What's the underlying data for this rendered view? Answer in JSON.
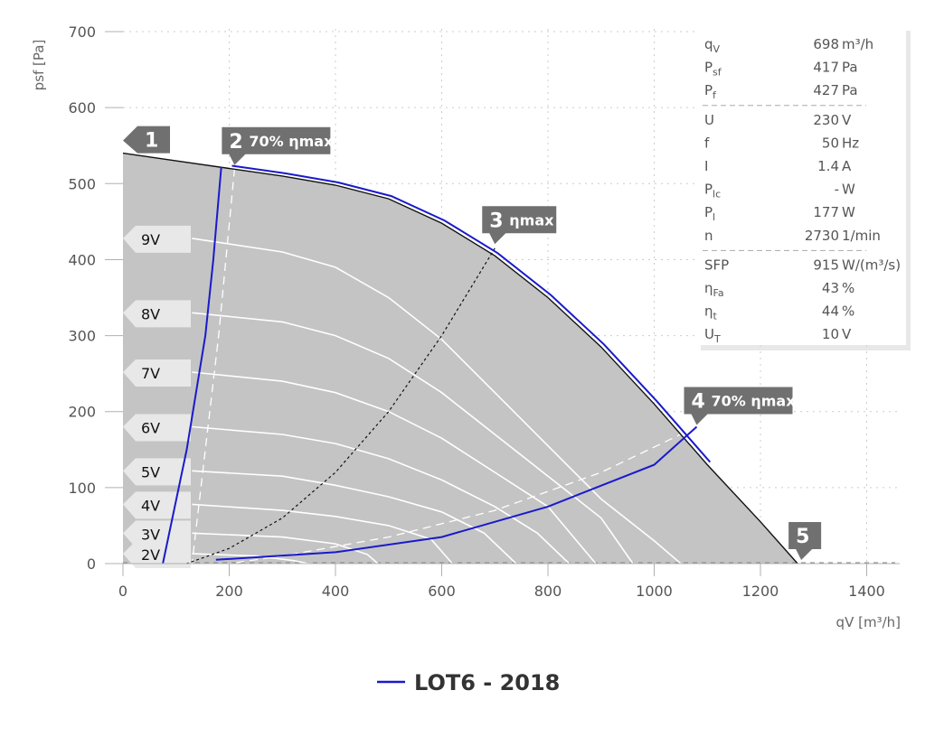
{
  "chart_data": {
    "type": "line",
    "xlabel": "qV [m³/h]",
    "ylabel": "psf [Pa]",
    "xlim": [
      0,
      1460
    ],
    "ylim": [
      0,
      700
    ],
    "xticks": [
      0,
      200,
      400,
      600,
      800,
      1000,
      1200,
      1400
    ],
    "yticks": [
      0,
      100,
      200,
      300,
      400,
      500,
      600,
      700
    ],
    "grid": "dotted",
    "legend_position": "bottom-center",
    "envelope": [
      [
        0,
        540
      ],
      [
        100,
        530
      ],
      [
        200,
        520
      ],
      [
        300,
        510
      ],
      [
        400,
        498
      ],
      [
        500,
        480
      ],
      [
        600,
        448
      ],
      [
        700,
        405
      ],
      [
        800,
        350
      ],
      [
        900,
        285
      ],
      [
        1000,
        210
      ],
      [
        1100,
        130
      ],
      [
        1200,
        55
      ],
      [
        1270,
        0
      ]
    ],
    "voltage_curves": [
      {
        "label": "9V",
        "points": [
          [
            130,
            428
          ],
          [
            300,
            410
          ],
          [
            400,
            390
          ],
          [
            500,
            350
          ],
          [
            600,
            295
          ],
          [
            700,
            225
          ],
          [
            800,
            155
          ],
          [
            900,
            85
          ],
          [
            1000,
            30
          ],
          [
            1050,
            0
          ]
        ]
      },
      {
        "label": "8V",
        "points": [
          [
            130,
            330
          ],
          [
            300,
            318
          ],
          [
            400,
            300
          ],
          [
            500,
            270
          ],
          [
            600,
            225
          ],
          [
            700,
            170
          ],
          [
            800,
            115
          ],
          [
            900,
            60
          ],
          [
            960,
            0
          ]
        ]
      },
      {
        "label": "7V",
        "points": [
          [
            130,
            252
          ],
          [
            300,
            240
          ],
          [
            400,
            225
          ],
          [
            500,
            200
          ],
          [
            600,
            165
          ],
          [
            700,
            120
          ],
          [
            800,
            75
          ],
          [
            890,
            0
          ]
        ]
      },
      {
        "label": "6V",
        "points": [
          [
            130,
            180
          ],
          [
            300,
            170
          ],
          [
            400,
            158
          ],
          [
            500,
            138
          ],
          [
            600,
            110
          ],
          [
            700,
            75
          ],
          [
            780,
            40
          ],
          [
            840,
            0
          ]
        ]
      },
      {
        "label": "5V",
        "points": [
          [
            130,
            122
          ],
          [
            300,
            115
          ],
          [
            400,
            103
          ],
          [
            500,
            88
          ],
          [
            600,
            68
          ],
          [
            680,
            40
          ],
          [
            740,
            0
          ]
        ]
      },
      {
        "label": "4V",
        "points": [
          [
            130,
            78
          ],
          [
            300,
            70
          ],
          [
            400,
            62
          ],
          [
            500,
            50
          ],
          [
            580,
            32
          ],
          [
            620,
            0
          ]
        ]
      },
      {
        "label": "3V",
        "points": [
          [
            130,
            40
          ],
          [
            300,
            35
          ],
          [
            400,
            26
          ],
          [
            460,
            12
          ],
          [
            480,
            0
          ]
        ]
      },
      {
        "label": "2V",
        "points": [
          [
            130,
            13
          ],
          [
            250,
            10
          ],
          [
            320,
            4
          ],
          [
            350,
            0
          ]
        ]
      }
    ],
    "series": [
      {
        "name": "LOT6 - 2018",
        "color": "#1a1acc",
        "points": [
          [
            185,
            522
          ],
          [
            170,
            400
          ],
          [
            155,
            300
          ],
          [
            120,
            150
          ],
          [
            75,
            0
          ]
        ],
        "points2": [
          [
            175,
            5
          ],
          [
            400,
            15
          ],
          [
            600,
            35
          ],
          [
            800,
            75
          ],
          [
            1000,
            130
          ],
          [
            1080,
            180
          ]
        ]
      }
    ],
    "efficiency_lines": [
      {
        "label": "70% ηmax",
        "style": "white-dash",
        "points": [
          [
            210,
            520
          ],
          [
            180,
            300
          ],
          [
            155,
            150
          ],
          [
            130,
            0
          ]
        ]
      },
      {
        "label": "ηmax",
        "style": "black-dash",
        "points": [
          [
            700,
            415
          ],
          [
            600,
            300
          ],
          [
            500,
            200
          ],
          [
            400,
            120
          ],
          [
            300,
            60
          ],
          [
            200,
            20
          ],
          [
            120,
            0
          ]
        ]
      },
      {
        "label": "70% ηmax",
        "style": "white-dash",
        "points": [
          [
            1080,
            180
          ],
          [
            900,
            120
          ],
          [
            700,
            70
          ],
          [
            500,
            35
          ],
          [
            300,
            10
          ],
          [
            200,
            0
          ]
        ]
      }
    ],
    "markers": [
      {
        "num": "1",
        "text": "",
        "x": 0,
        "y": 540
      },
      {
        "num": "2",
        "text": "70% ηmax",
        "x": 210,
        "y": 522
      },
      {
        "num": "3",
        "text": "ηmax",
        "x": 700,
        "y": 418
      },
      {
        "num": "4",
        "text": "70% ηmax",
        "x": 1080,
        "y": 180
      },
      {
        "num": "5",
        "text": "",
        "x": 1270,
        "y": 0
      }
    ]
  },
  "info_panel": {
    "groups": [
      [
        {
          "key": "q",
          "sub": "V",
          "value": "698 m³/h"
        },
        {
          "key": "P",
          "sub": "sf",
          "value": "417 Pa"
        },
        {
          "key": "P",
          "sub": "f",
          "value": "427 Pa"
        }
      ],
      [
        {
          "key": "U",
          "sub": "",
          "value": "230 V"
        },
        {
          "key": "f",
          "sub": "",
          "value": "50 Hz"
        },
        {
          "key": "I",
          "sub": "",
          "value": "1.4 A"
        },
        {
          "key": "P",
          "sub": "lc",
          "value": "- W"
        },
        {
          "key": "P",
          "sub": "l",
          "value": "177 W"
        },
        {
          "key": "n",
          "sub": "",
          "value": "2730 1/min"
        }
      ],
      [
        {
          "key": "SFP",
          "sub": "",
          "value": "915 W/(m³/s)"
        },
        {
          "key": "η",
          "sub": "Fa",
          "value": "43 %"
        },
        {
          "key": "η",
          "sub": "t",
          "value": "44 %"
        },
        {
          "key": "U",
          "sub": "T",
          "value": "10 V"
        }
      ]
    ]
  },
  "legend": {
    "label": "LOT6 - 2018",
    "color": "#1a1acc"
  }
}
